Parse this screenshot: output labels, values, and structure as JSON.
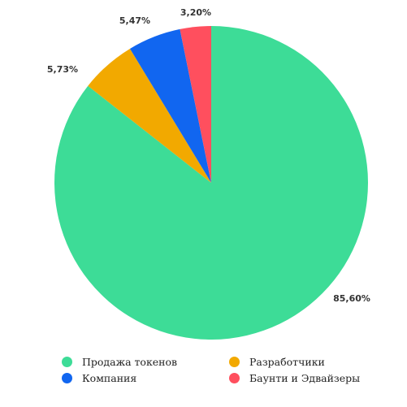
{
  "chart_data": {
    "type": "pie",
    "title": "",
    "slices": [
      {
        "name": "Продажа токенов",
        "value": 85.6,
        "label": "85,60%",
        "color": "#3ddc97"
      },
      {
        "name": "Разработчики",
        "value": 5.73,
        "label": "5,73%",
        "color": "#f2a900"
      },
      {
        "name": "Компания",
        "value": 5.47,
        "label": "5,47%",
        "color": "#1166f0"
      },
      {
        "name": "Баунти и Эдвайзеры",
        "value": 3.2,
        "label": "3,20%",
        "color": "#ff4f5e"
      }
    ],
    "legend_placement": "bottom",
    "start_angle": "top (12 o'clock), clockwise"
  },
  "legend": {
    "items": [
      {
        "label": "Продажа токенов",
        "color": "#3ddc97"
      },
      {
        "label": "Разработчики",
        "color": "#f2a900"
      },
      {
        "label": "Компания",
        "color": "#1166f0"
      },
      {
        "label": "Баунти и Эдвайзеры",
        "color": "#ff4f5e"
      }
    ]
  }
}
